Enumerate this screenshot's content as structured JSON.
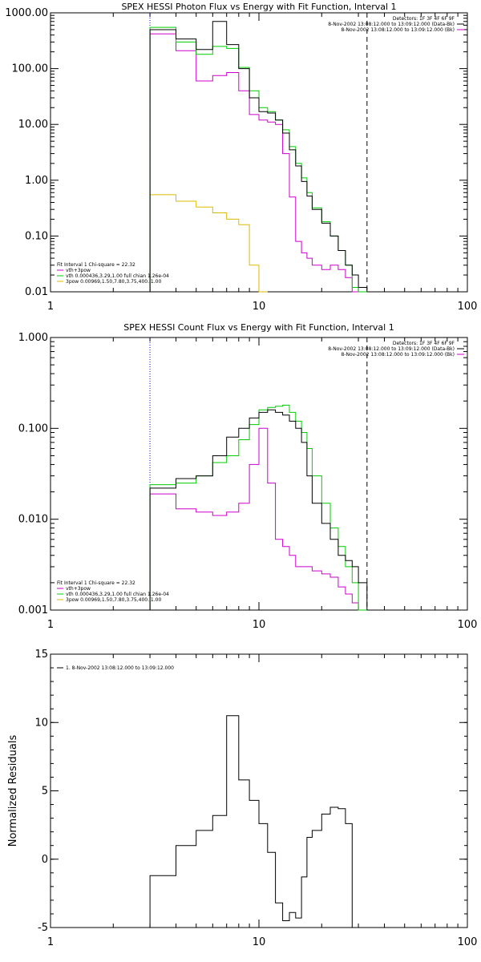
{
  "chart_data": [
    {
      "type": "line",
      "title": "SPEX HESSI Photon Flux vs Energy with Fit Function, Interval 1",
      "xscale": "log",
      "yscale": "log",
      "xlim": [
        1,
        100
      ],
      "ylim": [
        0.01,
        1000
      ],
      "xticks": [
        {
          "v": 1,
          "label": "1"
        },
        {
          "v": 10,
          "label": "10"
        },
        {
          "v": 100,
          "label": "100"
        }
      ],
      "yticks": [
        {
          "v": 0.01,
          "label": "0.01"
        },
        {
          "v": 0.1,
          "label": "0.10"
        },
        {
          "v": 1,
          "label": "1.00"
        },
        {
          "v": 10,
          "label": "10.00"
        },
        {
          "v": 100,
          "label": "100.00"
        },
        {
          "v": 1000,
          "label": "1000.00"
        }
      ],
      "header_lines": [
        "Detectors: 1F 3F 4F 6F 9F",
        "8-Nov-2002 13:08:12.000 to 13:09:12.000 (Data-Bk)",
        "8-Nov-2002 13:08:12.000 to 13:09:12.000 (Bk)"
      ],
      "header_colors": [
        "#000000",
        "#000000",
        "#cc00cc"
      ],
      "legend_lines": [
        "Fit Interval 1   Chi-square = 22.32",
        "vth+3pow",
        "vth 0.000436,3.29,1.00  full chian 1.26e-04",
        "3pow 0.00969,1.50,7.80,3.75,400.,1.00"
      ],
      "legend_colors": [
        "#000000",
        "#cc00cc",
        "#00cc00",
        "#ddbb00"
      ],
      "vlines": [
        {
          "x": 3,
          "style": "dotted",
          "color": "#0000cc"
        },
        {
          "x": 33,
          "style": "dashed",
          "color": "#000000"
        }
      ],
      "edges": [
        3,
        4,
        5,
        6,
        7,
        8,
        9,
        10,
        11,
        12,
        13,
        14,
        15,
        16,
        17,
        18,
        20,
        22,
        24,
        26,
        28,
        30,
        33
      ],
      "series": [
        {
          "name": "Data-Bk",
          "color": "#000000",
          "values": [
            500,
            340,
            220,
            700,
            270,
            100,
            30,
            17,
            16,
            12,
            7,
            3.5,
            1.8,
            0.95,
            0.52,
            0.3,
            0.17,
            0.1,
            0.055,
            0.03,
            0.02,
            0.012
          ]
        },
        {
          "name": "vth+3pow",
          "color": "#00cc00",
          "values": [
            550,
            300,
            180,
            250,
            230,
            105,
            40,
            20,
            17,
            12,
            8,
            4,
            2,
            1.1,
            0.6,
            0.32,
            0.18,
            0.1,
            0.055,
            0.03,
            0.012,
            0.006
          ]
        },
        {
          "name": "Bk",
          "color": "#cc00cc",
          "values": [
            420,
            210,
            60,
            75,
            85,
            40,
            15,
            12,
            11,
            10,
            3,
            0.5,
            0.08,
            0.05,
            0.04,
            0.03,
            0.025,
            0.03,
            0.025,
            0.018,
            0.01,
            0.008
          ]
        },
        {
          "name": "3pow",
          "color": "#ddbb00",
          "values": [
            0.55,
            0.42,
            0.33,
            0.26,
            0.2,
            0.16,
            0.03,
            0.005
          ]
        }
      ]
    },
    {
      "type": "line",
      "title": "SPEX HESSI Count Flux vs Energy with Fit Function, Interval 1",
      "xscale": "log",
      "yscale": "log",
      "xlim": [
        1,
        100
      ],
      "ylim": [
        0.001,
        1
      ],
      "xticks": [
        {
          "v": 1,
          "label": "1"
        },
        {
          "v": 10,
          "label": "10"
        },
        {
          "v": 100,
          "label": "100"
        }
      ],
      "yticks": [
        {
          "v": 0.001,
          "label": "0.001"
        },
        {
          "v": 0.01,
          "label": "0.010"
        },
        {
          "v": 0.1,
          "label": "0.100"
        },
        {
          "v": 1,
          "label": "1.000"
        }
      ],
      "header_lines": [
        "Detectors: 1F 3F 4F 6F 9F",
        "8-Nov-2002 13:08:12.000 to 13:09:12.000 (Data-Bk)",
        "8-Nov-2002 13:08:12.000 to 13:09:12.000 (Bk)"
      ],
      "header_colors": [
        "#000000",
        "#000000",
        "#cc00cc"
      ],
      "legend_lines": [
        "Fit Interval 1   Chi-square = 22.32",
        "vth+3pow",
        "vth 0.000436,3.29,1.00  full chian 1.26e-04",
        "3pow 0.00969,1.50,7.80,3.75,400.,1.00"
      ],
      "legend_colors": [
        "#000000",
        "#cc00cc",
        "#00cc00",
        "#ddbb00"
      ],
      "vlines": [
        {
          "x": 3,
          "style": "dotted",
          "color": "#0000cc"
        },
        {
          "x": 33,
          "style": "dashed",
          "color": "#000000"
        }
      ],
      "edges": [
        3,
        4,
        5,
        6,
        7,
        8,
        9,
        10,
        11,
        12,
        13,
        14,
        15,
        16,
        17,
        18,
        20,
        22,
        24,
        26,
        28,
        30,
        33
      ],
      "series": [
        {
          "name": "Data-Bk",
          "color": "#000000",
          "values": [
            0.022,
            0.028,
            0.03,
            0.05,
            0.08,
            0.1,
            0.13,
            0.15,
            0.16,
            0.15,
            0.14,
            0.12,
            0.1,
            0.07,
            0.03,
            0.015,
            0.009,
            0.006,
            0.004,
            0.0035,
            0.003,
            0.002
          ]
        },
        {
          "name": "vth+3pow",
          "color": "#00cc00",
          "values": [
            0.024,
            0.025,
            0.03,
            0.042,
            0.05,
            0.075,
            0.11,
            0.16,
            0.17,
            0.175,
            0.18,
            0.15,
            0.12,
            0.09,
            0.06,
            0.03,
            0.015,
            0.008,
            0.005,
            0.003,
            0.002,
            0.001
          ]
        },
        {
          "name": "Bk",
          "color": "#cc00cc",
          "values": [
            0.019,
            0.013,
            0.012,
            0.011,
            0.012,
            0.015,
            0.04,
            0.1,
            0.025,
            0.006,
            0.005,
            0.004,
            0.003,
            0.003,
            0.003,
            0.0027,
            0.0025,
            0.0023,
            0.0018,
            0.0015,
            0.0012,
            0.0003
          ]
        }
      ]
    },
    {
      "type": "line",
      "title": "",
      "ylabel": "Normalized Residuals",
      "xscale": "log",
      "yscale": "linear",
      "xlim": [
        1,
        100
      ],
      "ylim": [
        -5,
        15
      ],
      "xticks": [
        {
          "v": 1,
          "label": "1"
        },
        {
          "v": 10,
          "label": "10"
        },
        {
          "v": 100,
          "label": "100"
        }
      ],
      "yticks": [
        {
          "v": -5,
          "label": "-5"
        },
        {
          "v": 0,
          "label": "0"
        },
        {
          "v": 5,
          "label": "5"
        },
        {
          "v": 10,
          "label": "10"
        },
        {
          "v": 15,
          "label": "15"
        }
      ],
      "legend_lines": [
        "1.  8-Nov-2002 13:08:12.000 to 13:09:12.000"
      ],
      "legend_colors": [
        "#000000"
      ],
      "edges": [
        3,
        4,
        5,
        6,
        7,
        8,
        9,
        10,
        11,
        12,
        13,
        14,
        15,
        16,
        17,
        18,
        20,
        22,
        24,
        26,
        28,
        30,
        33
      ],
      "series": [
        {
          "name": "1.  8-Nov-2002 13:08:12.000 to 13:09:12.000",
          "color": "#000000",
          "values": [
            -1.2,
            1.0,
            2.1,
            3.2,
            10.5,
            5.8,
            4.3,
            2.6,
            0.5,
            -3.2,
            -4.5,
            -3.9,
            -4.3,
            -1.3,
            1.6,
            2.1,
            3.3,
            3.8,
            3.7,
            2.6,
            -5.5,
            -5.5
          ]
        }
      ]
    }
  ]
}
